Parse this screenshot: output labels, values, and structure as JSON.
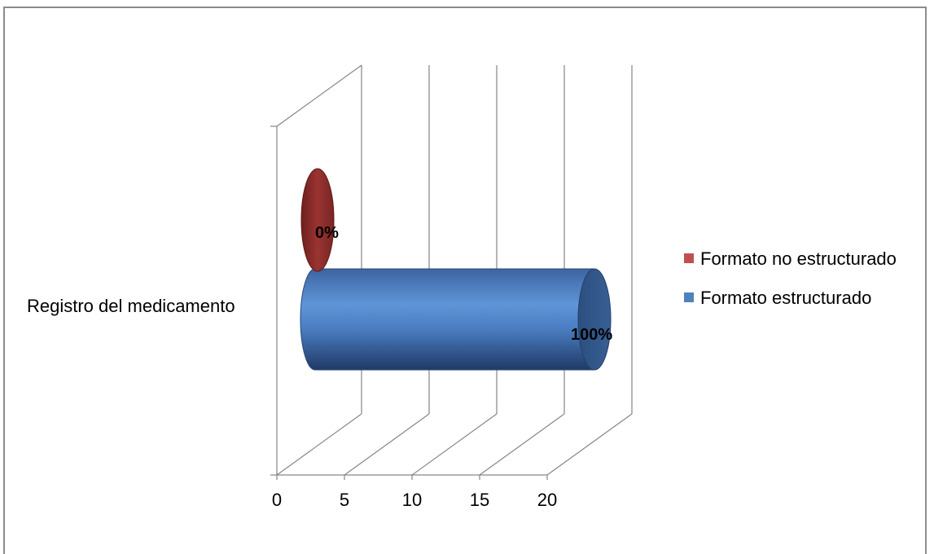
{
  "chart_data": {
    "type": "bar",
    "orientation": "horizontal",
    "style": "3d-cylinder",
    "categories": [
      "Registro del medicamento"
    ],
    "series": [
      {
        "name": "Formato estructurado",
        "values": [
          20
        ],
        "data_labels": [
          "100%"
        ],
        "color": "#4f81bd"
      },
      {
        "name": "Formato no estructurado",
        "values": [
          0
        ],
        "data_labels": [
          "0%"
        ],
        "color": "#c0504d"
      }
    ],
    "xlim": [
      0,
      20
    ],
    "x_ticks": [
      "0",
      "5",
      "10",
      "15",
      "20"
    ],
    "grid": true,
    "legend_position": "right",
    "legend": [
      "Formato no estructurado",
      "Formato estructurado"
    ]
  }
}
